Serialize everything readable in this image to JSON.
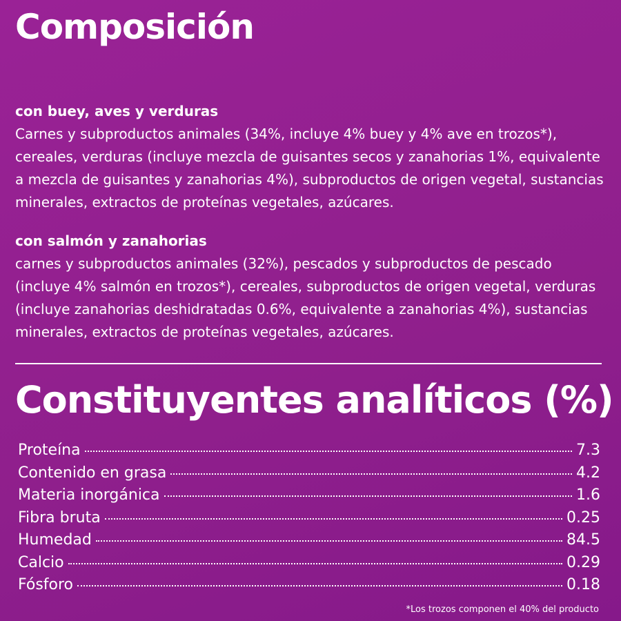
{
  "composition": {
    "title": "Composición",
    "sections": [
      {
        "heading": "con buey, aves y verduras",
        "text": "Carnes y subproductos animales (34%, incluye 4% buey y 4% ave en trozos*), cereales, verduras (incluye mezcla de guisantes secos y zanahorias 1%, equivalente a mezcla de guisantes y zanahorias 4%), subproductos de origen vegetal, sustancias minerales, extractos de proteínas vegetales, azúcares."
      },
      {
        "heading": "con salmón y zanahorias",
        "text": "carnes y subproductos animales (32%), pescados y subproductos de pescado (incluye 4% salmón en trozos*), cereales, subproductos de origen vegetal, verduras (incluye zanahorias deshidratadas 0.6%, equivalente a zanahorias 4%), sustancias minerales, extractos de proteínas vegetales, azúcares."
      }
    ]
  },
  "analysis": {
    "title": "Constituyentes analíticos (%)",
    "rows": [
      [
        "Proteína",
        "7.3"
      ],
      [
        "Contenido en grasa",
        "4.2"
      ],
      [
        "Materia inorgánica",
        "1.6"
      ],
      [
        "Fibra bruta",
        "0.25"
      ],
      [
        "Humedad",
        "84.5"
      ],
      [
        "Calcio",
        "0.29"
      ],
      [
        "Fósforo",
        "0.18"
      ]
    ],
    "footnote": "*Los trozos componen el 40% del producto"
  }
}
